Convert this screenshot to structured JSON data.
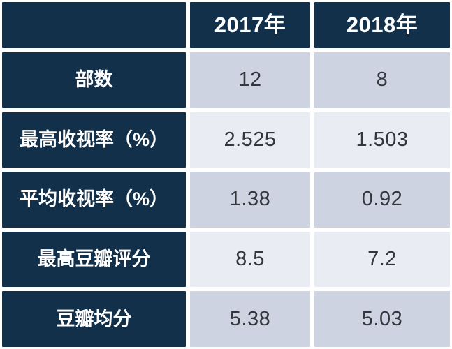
{
  "chart_data": {
    "type": "table",
    "columns": [
      "",
      "2017年",
      "2018年"
    ],
    "rows": [
      {
        "label": "部数",
        "values": [
          "12",
          "8"
        ]
      },
      {
        "label": "最高收视率（%）",
        "values": [
          "2.525",
          "1.503"
        ]
      },
      {
        "label": "平均收视率（%）",
        "values": [
          "1.38",
          "0.92"
        ]
      },
      {
        "label": "最高豆瓣评分",
        "values": [
          "8.5",
          "7.2"
        ]
      },
      {
        "label": "豆瓣均分",
        "values": [
          "5.38",
          "5.03"
        ]
      }
    ],
    "layout": {
      "header_row": "top",
      "header_column": "left",
      "banded_rows": true,
      "grid_lines": "white",
      "legend": "none"
    }
  },
  "colors": {
    "header_navy": "#13304b",
    "band_dark": "#cdd3e1",
    "band_light": "#e9ecf3",
    "grid_line": "#ffffff",
    "value_text": "#34383e",
    "header_text": "#ffffff"
  }
}
